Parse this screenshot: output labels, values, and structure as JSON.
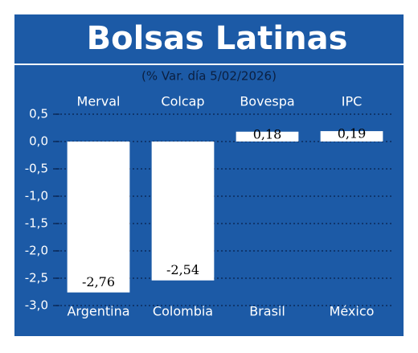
{
  "chart_data": {
    "type": "bar",
    "title": "Bolsas Latinas",
    "subtitle": "(% Var. día 5/02/2026)",
    "index_names": [
      "Merval",
      "Colcap",
      "Bovespa",
      "IPC"
    ],
    "categories": [
      "Argentina",
      "Colombia",
      "Brasil",
      "México"
    ],
    "values": [
      -2.76,
      -2.54,
      0.18,
      0.19
    ],
    "value_labels": [
      "-2,76",
      "-2,54",
      "0,18",
      "0,19"
    ],
    "color": "#ffffff",
    "ylim": [
      -3.0,
      0.5
    ],
    "yticks": [
      {
        "value": 0.5,
        "label": "0,5"
      },
      {
        "value": 0.0,
        "label": "0,0"
      },
      {
        "value": -0.5,
        "label": "-0,5"
      },
      {
        "value": -1.0,
        "label": "-1,0"
      },
      {
        "value": -1.5,
        "label": "-1,5"
      },
      {
        "value": -2.0,
        "label": "-2,0"
      },
      {
        "value": -2.5,
        "label": "-2,5"
      },
      {
        "value": -3.0,
        "label": "-3,0"
      }
    ],
    "grid": true
  }
}
